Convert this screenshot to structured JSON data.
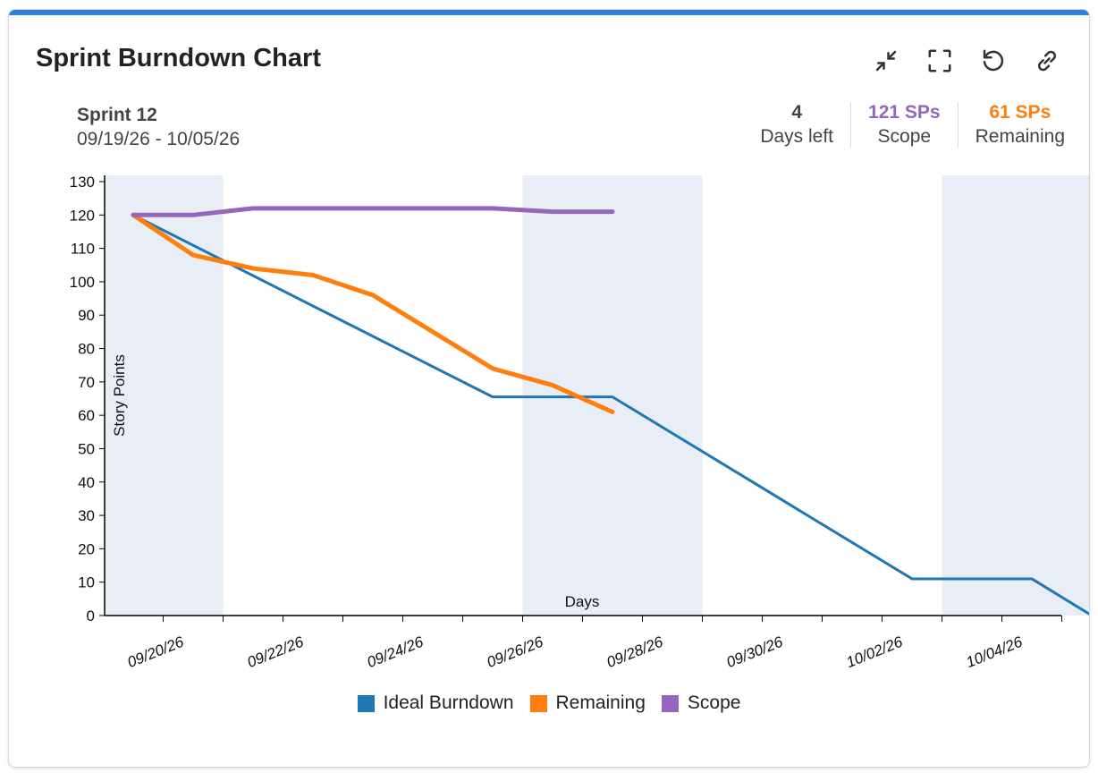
{
  "header": {
    "title": "Sprint Burndown Chart",
    "toolbar": [
      {
        "name": "collapse-icon",
        "label": "Collapse"
      },
      {
        "name": "fullscreen-icon",
        "label": "Full screen"
      },
      {
        "name": "refresh-icon",
        "label": "Refresh"
      },
      {
        "name": "link-icon",
        "label": "Copy link"
      }
    ]
  },
  "sprint": {
    "name": "Sprint 12",
    "dates": "09/19/26 - 10/05/26"
  },
  "stats": [
    {
      "value": "4",
      "label": "Days left",
      "color": "#444444"
    },
    {
      "value": "121 SPs",
      "label": "Scope",
      "color": "#9467bd"
    },
    {
      "value": "61 SPs",
      "label": "Remaining",
      "color": "#ff7f0e"
    }
  ],
  "colors": {
    "accent_bar": "#2f7ee0",
    "weekend_band": "#e9eef6"
  },
  "chart_data": {
    "type": "line",
    "xlabel": "Days",
    "ylabel": "Story Points",
    "ylim": [
      0,
      130
    ],
    "yticks": [
      0,
      10,
      20,
      30,
      40,
      50,
      60,
      70,
      80,
      90,
      100,
      110,
      120,
      130
    ],
    "x_range": [
      "09/19/26",
      "10/05/26"
    ],
    "x_tick_labels": [
      "09/20/26",
      "09/22/26",
      "09/24/26",
      "09/26/26",
      "09/28/26",
      "09/30/26",
      "10/02/26",
      "10/04/26"
    ],
    "weekends": [
      [
        "09/19/26",
        "09/20/26"
      ],
      [
        "09/26/26",
        "09/28/26"
      ],
      [
        "10/03/26",
        "10/05/26"
      ]
    ],
    "grid": false,
    "legend_position": "bottom",
    "series": [
      {
        "name": "Ideal Burndown",
        "color": "#1f77b4",
        "points": [
          [
            "09/19/26",
            120
          ],
          [
            "09/25/26",
            65.5
          ],
          [
            "09/27/26",
            65.5
          ],
          [
            "10/02/26",
            11
          ],
          [
            "10/04/26",
            11
          ],
          [
            "10/05/26",
            0
          ]
        ]
      },
      {
        "name": "Remaining",
        "color": "#ff7f0e",
        "points": [
          [
            "09/19/26",
            120
          ],
          [
            "09/20/26",
            108
          ],
          [
            "09/21/26",
            104
          ],
          [
            "09/22/26",
            102
          ],
          [
            "09/23/26",
            96
          ],
          [
            "09/24/26",
            85
          ],
          [
            "09/25/26",
            74
          ],
          [
            "09/26/26",
            69
          ],
          [
            "09/27/26",
            61
          ]
        ]
      },
      {
        "name": "Scope",
        "color": "#9467bd",
        "points": [
          [
            "09/19/26",
            120
          ],
          [
            "09/20/26",
            120
          ],
          [
            "09/21/26",
            122
          ],
          [
            "09/22/26",
            122
          ],
          [
            "09/23/26",
            122
          ],
          [
            "09/24/26",
            122
          ],
          [
            "09/25/26",
            122
          ],
          [
            "09/26/26",
            121
          ],
          [
            "09/27/26",
            121
          ]
        ]
      }
    ]
  }
}
